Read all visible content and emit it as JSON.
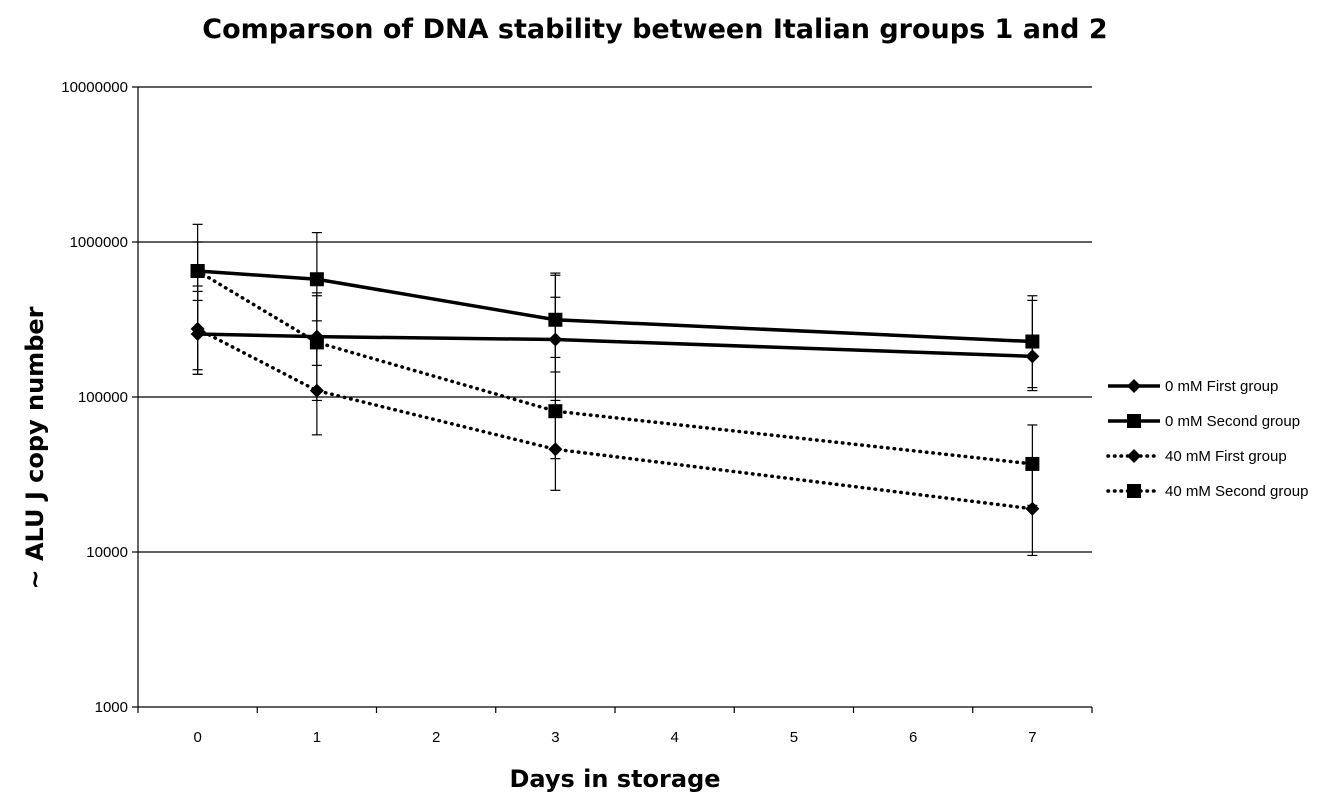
{
  "chart_data": {
    "type": "line",
    "title": "Comparson of DNA stability between Italian groups 1 and 2",
    "xlabel": "Days in storage",
    "ylabel": "~ ALU J copy number",
    "y_scale": "log",
    "ylim": [
      1000,
      10000000
    ],
    "xlim": [
      -0.5,
      7.5
    ],
    "x_ticks": [
      0,
      1,
      2,
      3,
      4,
      5,
      6,
      7
    ],
    "x_tick_labels": [
      "0",
      "1",
      "2",
      "3",
      "4",
      "5",
      "6",
      "7"
    ],
    "y_ticks": [
      1000,
      10000,
      100000,
      1000000,
      10000000
    ],
    "y_tick_labels": [
      "1000",
      "10000",
      "100000",
      "1000000",
      "10000000"
    ],
    "grid": "horizontal major gridlines",
    "legend_position": "right",
    "series": [
      {
        "name": "0 mM First group",
        "line_style": "solid",
        "marker": "diamond",
        "color": "#000000",
        "x": [
          0,
          1,
          3,
          7
        ],
        "y": [
          255000,
          245000,
          235000,
          183000
        ],
        "error_low": [
          140000,
          160000,
          145000,
          110000
        ],
        "error_high": [
          480000,
          470000,
          440000,
          420000
        ]
      },
      {
        "name": "0 mM Second group",
        "line_style": "solid",
        "marker": "square",
        "color": "#000000",
        "x": [
          0,
          1,
          3,
          7
        ],
        "y": [
          650000,
          575000,
          315000,
          228000
        ],
        "error_low": [
          150000,
          310000,
          180000,
          115000
        ],
        "error_high": [
          1300000,
          1150000,
          630000,
          450000
        ]
      },
      {
        "name": "40 mM First group",
        "line_style": "dotted",
        "marker": "diamond",
        "color": "#000000",
        "x": [
          0,
          1,
          3,
          7
        ],
        "y": [
          275000,
          110000,
          46000,
          19000
        ],
        "error_low": [
          140000,
          57000,
          25000,
          9500
        ],
        "error_high": [
          520000,
          230000,
          95000,
          37000
        ]
      },
      {
        "name": "40 mM Second group",
        "line_style": "dotted",
        "marker": "square",
        "color": "#000000",
        "x": [
          0,
          1,
          3,
          7
        ],
        "y": [
          650000,
          225000,
          81000,
          37000
        ],
        "error_low": [
          420000,
          95000,
          40000,
          20000
        ],
        "error_high": [
          1000000,
          450000,
          610000,
          66000
        ]
      }
    ]
  }
}
